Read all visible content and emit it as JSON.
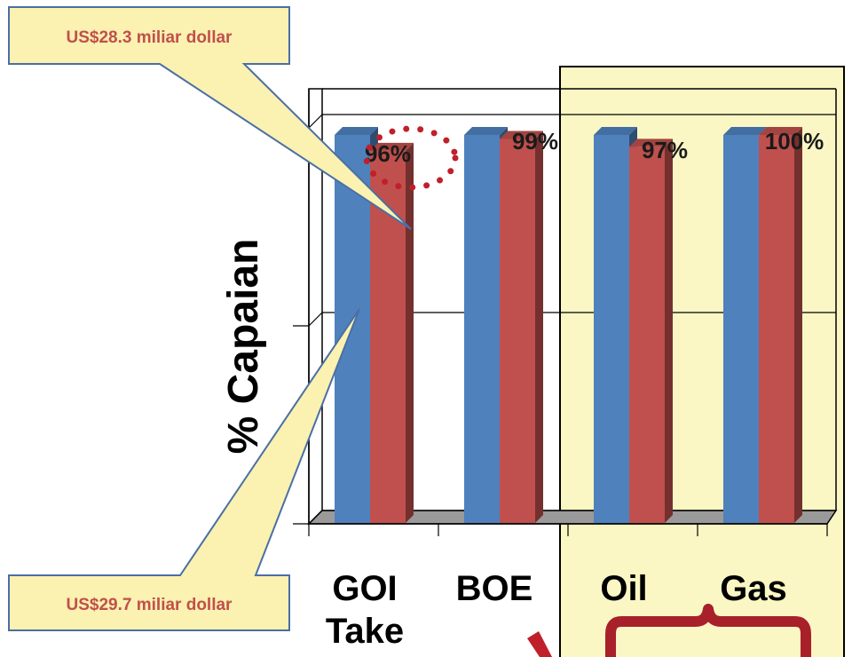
{
  "chart_data": {
    "type": "bar",
    "ylabel": "% Capaian",
    "categories": [
      "GOI Take",
      "BOE",
      "Oil",
      "Gas"
    ],
    "category_lines": [
      [
        "GOI",
        "Take"
      ],
      [
        "BOE"
      ],
      [
        "Oil"
      ],
      [
        "Gas"
      ]
    ],
    "series": [
      {
        "values": [
          100,
          100,
          100,
          100
        ],
        "color": "#4f81bd"
      },
      {
        "values": [
          96,
          99,
          97,
          100
        ],
        "color": "#c0504d"
      }
    ],
    "data_labels": [
      "96%",
      "99%",
      "97%",
      "100%"
    ],
    "ylim": [
      0,
      100
    ],
    "grid": true,
    "highlight_categories": [
      "Oil",
      "Gas"
    ]
  },
  "callouts": {
    "top": "US$28.3 miliar dollar",
    "bottom": "US$29.7 miliar dollar"
  },
  "colors": {
    "highlight_box": "#fbf7c4",
    "callout_fill": "#fbf1b0",
    "callout_border": "#4a6fa5",
    "brace": "#a8202a",
    "dotted_circle": "#c0202a"
  }
}
